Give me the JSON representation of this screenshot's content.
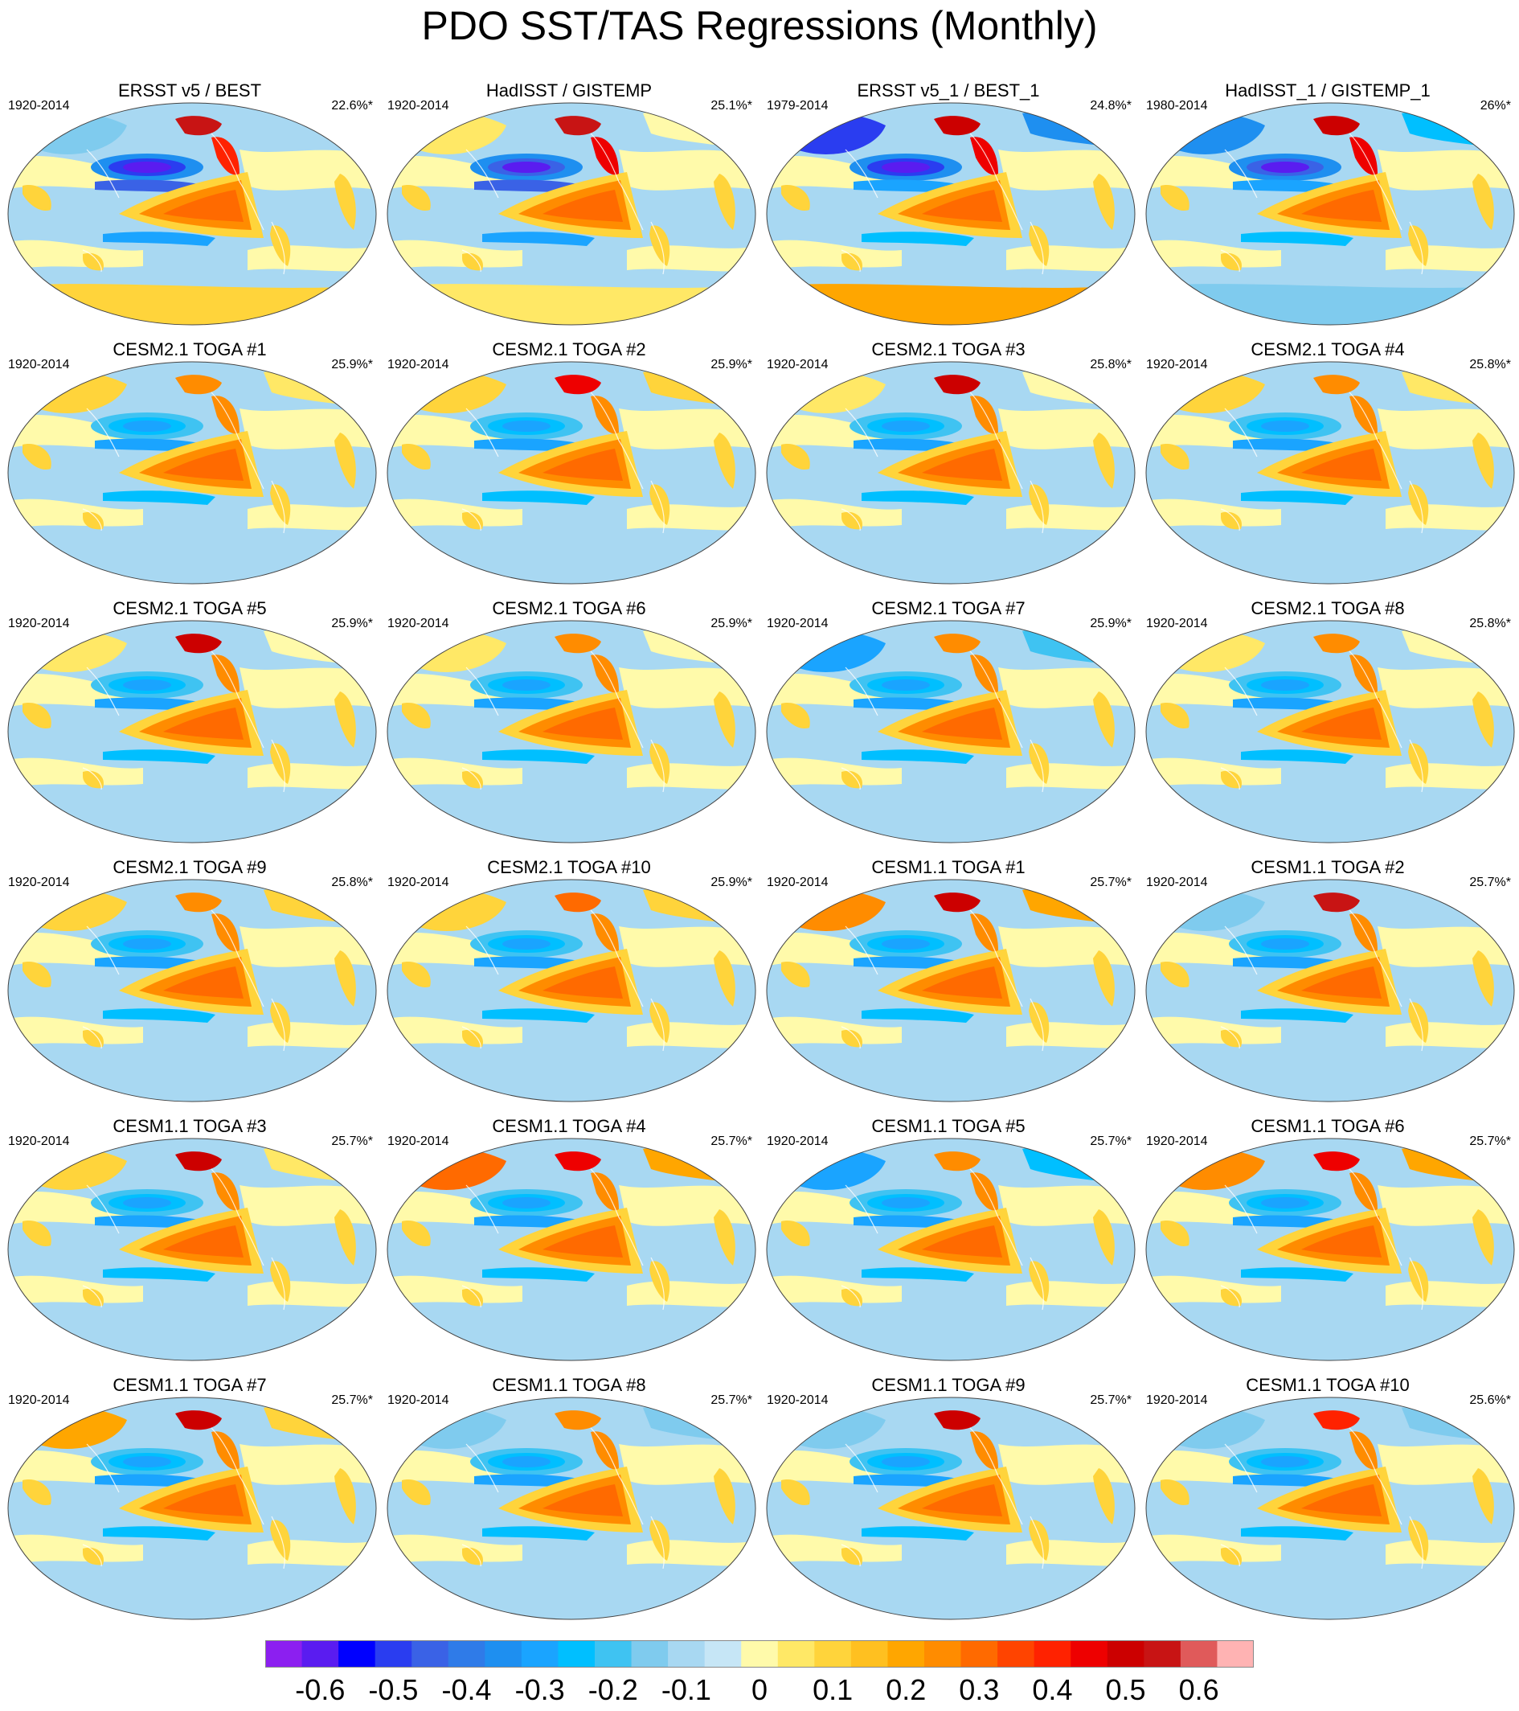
{
  "title": "PDO SST/TAS Regressions (Monthly)",
  "panels": [
    {
      "title": "ERSST v5 / BEST",
      "years": "1920-2014",
      "pct": "22.6%*",
      "npac": -0.6,
      "ntrop": -0.4,
      "wcoast": 0.4,
      "alaska": 0.6,
      "eurasia": -0.1,
      "south": 0.1
    },
    {
      "title": "HadISST / GISTEMP",
      "years": "1920-2014",
      "pct": "25.1%*",
      "npac": -0.55,
      "ntrop": -0.4,
      "wcoast": 0.45,
      "alaska": 0.6,
      "eurasia": 0.05,
      "south": 0.05
    },
    {
      "title": "ERSST v5_1 / BEST_1",
      "years": "1979-2014",
      "pct": "24.8%*",
      "npac": -0.6,
      "ntrop": -0.3,
      "wcoast": 0.45,
      "alaska": 0.5,
      "eurasia": -0.45,
      "south": 0.2
    },
    {
      "title": "HadISST_1 / GISTEMP_1",
      "years": "1980-2014",
      "pct": "26%*",
      "npac": -0.55,
      "ntrop": -0.3,
      "wcoast": 0.45,
      "alaska": 0.5,
      "eurasia": -0.35,
      "south": -0.1
    },
    {
      "title": "CESM2.1 TOGA #1",
      "years": "1920-2014",
      "pct": "25.9%*",
      "npac": -0.3,
      "ntrop": -0.3,
      "wcoast": 0.3,
      "alaska": 0.3,
      "eurasia": 0.1,
      "south": -0.05
    },
    {
      "title": "CESM2.1 TOGA #2",
      "years": "1920-2014",
      "pct": "25.9%*",
      "npac": -0.3,
      "ntrop": -0.3,
      "wcoast": 0.25,
      "alaska": 0.45,
      "eurasia": 0.15,
      "south": -0.05
    },
    {
      "title": "CESM2.1 TOGA #3",
      "years": "1920-2014",
      "pct": "25.8%*",
      "npac": -0.3,
      "ntrop": -0.3,
      "wcoast": 0.25,
      "alaska": 0.5,
      "eurasia": 0.05,
      "south": -0.05
    },
    {
      "title": "CESM2.1 TOGA #4",
      "years": "1920-2014",
      "pct": "25.8%*",
      "npac": -0.3,
      "ntrop": -0.3,
      "wcoast": 0.25,
      "alaska": 0.3,
      "eurasia": 0.1,
      "south": -0.05
    },
    {
      "title": "CESM2.1 TOGA #5",
      "years": "1920-2014",
      "pct": "25.9%*",
      "npac": -0.3,
      "ntrop": -0.3,
      "wcoast": 0.25,
      "alaska": 0.5,
      "eurasia": 0.05,
      "south": -0.05
    },
    {
      "title": "CESM2.1 TOGA #6",
      "years": "1920-2014",
      "pct": "25.9%*",
      "npac": -0.3,
      "ntrop": -0.3,
      "wcoast": 0.25,
      "alaska": 0.3,
      "eurasia": 0.05,
      "south": -0.05
    },
    {
      "title": "CESM2.1 TOGA #7",
      "years": "1920-2014",
      "pct": "25.9%*",
      "npac": -0.3,
      "ntrop": -0.3,
      "wcoast": 0.25,
      "alaska": 0.25,
      "eurasia": -0.25,
      "south": -0.05
    },
    {
      "title": "CESM2.1 TOGA #8",
      "years": "1920-2014",
      "pct": "25.8%*",
      "npac": -0.3,
      "ntrop": -0.3,
      "wcoast": 0.25,
      "alaska": 0.3,
      "eurasia": 0.05,
      "south": -0.05
    },
    {
      "title": "CESM2.1 TOGA #9",
      "years": "1920-2014",
      "pct": "25.8%*",
      "npac": -0.3,
      "ntrop": -0.3,
      "wcoast": 0.25,
      "alaska": 0.3,
      "eurasia": 0.15,
      "south": -0.05
    },
    {
      "title": "CESM2.1 TOGA #10",
      "years": "1920-2014",
      "pct": "25.9%*",
      "npac": -0.3,
      "ntrop": -0.3,
      "wcoast": 0.25,
      "alaska": 0.35,
      "eurasia": 0.15,
      "south": -0.05
    },
    {
      "title": "CESM1.1 TOGA #1",
      "years": "1920-2014",
      "pct": "25.7%*",
      "npac": -0.3,
      "ntrop": -0.3,
      "wcoast": 0.25,
      "alaska": 0.5,
      "eurasia": 0.3,
      "south": -0.05
    },
    {
      "title": "CESM1.1 TOGA #2",
      "years": "1920-2014",
      "pct": "25.7%*",
      "npac": -0.3,
      "ntrop": -0.3,
      "wcoast": 0.25,
      "alaska": 0.55,
      "eurasia": -0.1,
      "south": -0.05
    },
    {
      "title": "CESM1.1 TOGA #3",
      "years": "1920-2014",
      "pct": "25.7%*",
      "npac": -0.3,
      "ntrop": -0.3,
      "wcoast": 0.25,
      "alaska": 0.5,
      "eurasia": 0.1,
      "south": -0.05
    },
    {
      "title": "CESM1.1 TOGA #4",
      "years": "1920-2014",
      "pct": "25.7%*",
      "npac": -0.3,
      "ntrop": -0.3,
      "wcoast": 0.25,
      "alaska": 0.45,
      "eurasia": 0.35,
      "south": -0.05
    },
    {
      "title": "CESM1.1 TOGA #5",
      "years": "1920-2014",
      "pct": "25.7%*",
      "npac": -0.3,
      "ntrop": -0.3,
      "wcoast": 0.25,
      "alaska": 0.3,
      "eurasia": -0.3,
      "south": -0.05
    },
    {
      "title": "CESM1.1 TOGA #6",
      "years": "1920-2014",
      "pct": "25.7%*",
      "npac": -0.3,
      "ntrop": -0.3,
      "wcoast": 0.25,
      "alaska": 0.45,
      "eurasia": 0.3,
      "south": -0.05
    },
    {
      "title": "CESM1.1 TOGA #7",
      "years": "1920-2014",
      "pct": "25.7%*",
      "npac": -0.3,
      "ntrop": -0.3,
      "wcoast": 0.25,
      "alaska": 0.5,
      "eurasia": 0.2,
      "south": -0.05
    },
    {
      "title": "CESM1.1 TOGA #8",
      "years": "1920-2014",
      "pct": "25.7%*",
      "npac": -0.3,
      "ntrop": -0.3,
      "wcoast": 0.25,
      "alaska": 0.3,
      "eurasia": -0.15,
      "south": -0.05
    },
    {
      "title": "CESM1.1 TOGA #9",
      "years": "1920-2014",
      "pct": "25.7%*",
      "npac": -0.3,
      "ntrop": -0.3,
      "wcoast": 0.25,
      "alaska": 0.5,
      "eurasia": -0.1,
      "south": -0.05
    },
    {
      "title": "CESM1.1 TOGA #10",
      "years": "1920-2014",
      "pct": "25.6%*",
      "npac": -0.3,
      "ntrop": -0.3,
      "wcoast": 0.25,
      "alaska": 0.4,
      "eurasia": -0.15,
      "south": -0.05
    }
  ],
  "colorbar": {
    "colors": [
      "#8c1ff0",
      "#5a1cf0",
      "#0000ff",
      "#2a3df0",
      "#3a62e6",
      "#2f7be8",
      "#1e8ff0",
      "#1aa4ff",
      "#00bfff",
      "#3fc3f2",
      "#7fcbee",
      "#a8d8f2",
      "#c6e6f6",
      "#fffaaa",
      "#ffe866",
      "#ffd43b",
      "#ffc020",
      "#ffa600",
      "#ff8c00",
      "#ff6a00",
      "#ff4400",
      "#ff2200",
      "#ee0000",
      "#cc0000",
      "#c81414",
      "#e05a5a",
      "#ffb3b3"
    ],
    "labels": [
      "-0.6",
      "-0.5",
      "-0.4",
      "-0.3",
      "-0.2",
      "-0.1",
      "0",
      "0.1",
      "0.2",
      "0.3",
      "0.4",
      "0.5",
      "0.6"
    ],
    "levels": [
      -0.6,
      -0.5,
      -0.4,
      -0.3,
      -0.2,
      -0.1,
      0,
      0.1,
      0.2,
      0.3,
      0.4,
      0.5,
      0.6
    ]
  }
}
